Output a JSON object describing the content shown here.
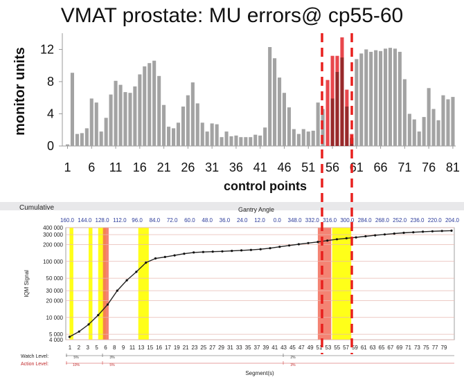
{
  "title": "VMAT prostate: MU errors@ cp55-60",
  "chart_data": [
    {
      "type": "bar",
      "ylabel": "monitor units",
      "xlabel": "control points",
      "ylim": [
        0,
        13.5
      ],
      "yticks": [
        0,
        4,
        8,
        12
      ],
      "xticks": [
        1,
        6,
        11,
        16,
        21,
        26,
        31,
        36,
        41,
        46,
        51,
        56,
        61,
        66,
        71,
        76,
        81
      ],
      "x": [
        1,
        2,
        3,
        4,
        5,
        6,
        7,
        8,
        9,
        10,
        11,
        12,
        13,
        14,
        15,
        16,
        17,
        18,
        19,
        20,
        21,
        22,
        23,
        24,
        25,
        26,
        27,
        28,
        29,
        30,
        31,
        32,
        33,
        34,
        35,
        36,
        37,
        38,
        39,
        40,
        41,
        42,
        43,
        44,
        45,
        46,
        47,
        48,
        49,
        50,
        51,
        52,
        53,
        54,
        55,
        56,
        57,
        58,
        59,
        60,
        61,
        62,
        63,
        64,
        65,
        66,
        67,
        68,
        69,
        70,
        71,
        72,
        73,
        74,
        75,
        76,
        77,
        78,
        79,
        80,
        81
      ],
      "series": [
        {
          "values": [
            0.2,
            9.1,
            1.5,
            1.6,
            2.2,
            5.9,
            5.4,
            1.8,
            3.5,
            6.4,
            8.1,
            7.6,
            6.7,
            6.6,
            7.4,
            8.9,
            9.9,
            10.3,
            10.6,
            8.7,
            5.1,
            2.4,
            2.2,
            2.9,
            4.9,
            6.3,
            7.9,
            5.3,
            2.9,
            1.8,
            2.8,
            2.7,
            1.1,
            1.8,
            1.2,
            1.3,
            1.1,
            1.1,
            1.1,
            1.4,
            1.3,
            2.3,
            12.3,
            10.9,
            8.5,
            6.6,
            4.8,
            2.1,
            1.5,
            2.1,
            1.8,
            1.9,
            5.4,
            4.6,
            8.2,
            11.2,
            11.2,
            13.5,
            7.0,
            1.5,
            10.8,
            11.5,
            12.0,
            11.7,
            11.9,
            11.8,
            12.1,
            12.2,
            12.1,
            11.7,
            8.3,
            4.0,
            3.3,
            1.8,
            3.6,
            7.2,
            4.6,
            3.2,
            6.3,
            5.8,
            6.1
          ],
          "highlight_color": "#e8474c",
          "highlight_indices": [
            54,
            55,
            56,
            57,
            58,
            59
          ],
          "overlay_dark": [
            0,
            0,
            0,
            0,
            0,
            0,
            0,
            0,
            0,
            0,
            0,
            0,
            0,
            0,
            0,
            0,
            0,
            0,
            0,
            0,
            0,
            0,
            0,
            0,
            0,
            0,
            0,
            0,
            0,
            0,
            0,
            0,
            0,
            0,
            0,
            0,
            0,
            0,
            0,
            0,
            0,
            0,
            0,
            0,
            0,
            0,
            0,
            0,
            0,
            0,
            0,
            0,
            0,
            0,
            0,
            5.9,
            9.2,
            11.0,
            4.9,
            1.0,
            0,
            0,
            0,
            0,
            0,
            0,
            0,
            0,
            0,
            0,
            0,
            0,
            0,
            0,
            0,
            0,
            0,
            0,
            0,
            0,
            0
          ]
        }
      ],
      "bar_color": "#a3a3a3",
      "dashed_line_color": "#e8201e"
    },
    {
      "type": "line",
      "title": "Cumulative",
      "top_axis_label": "Gantry Angle",
      "top_ticks": [
        "160.0",
        "144.0",
        "128.0",
        "112.0",
        "96.0",
        "84.0",
        "72.0",
        "60.0",
        "48.0",
        "36.0",
        "24.0",
        "12.0",
        "0.0",
        "348.0",
        "332.0",
        "316.0",
        "300.0",
        "284.0",
        "268.0",
        "252.0",
        "236.0",
        "220.0",
        "204.0"
      ],
      "ylabel": "IQM Signal",
      "xlabel": "Segment(s)",
      "yscale": "log",
      "ylim": [
        4000,
        400000
      ],
      "yticks": [
        {
          "value": 4000,
          "label": "4 000"
        },
        {
          "value": 5000,
          "label": "5 000"
        },
        {
          "value": 10000,
          "label": "10 000"
        },
        {
          "value": 20000,
          "label": "20 000"
        },
        {
          "value": 30000,
          "label": "30 000"
        },
        {
          "value": 50000,
          "label": "50 000"
        },
        {
          "value": 100000,
          "label": "100 000"
        },
        {
          "value": 200000,
          "label": "200 000"
        },
        {
          "value": 300000,
          "label": "300 000"
        },
        {
          "value": 400000,
          "label": "400 000"
        }
      ],
      "xticks_labels": [
        "1",
        "2",
        "3",
        "5",
        "6",
        "8",
        "9",
        "11",
        "13",
        "15",
        "16",
        "17",
        "19",
        "21",
        "23",
        "25",
        "27",
        "29",
        "31",
        "33",
        "35",
        "37",
        "39",
        "41",
        "43",
        "45",
        "47",
        "49",
        "51",
        "53",
        "55",
        "57",
        "59",
        "61",
        "63",
        "65",
        "67",
        "69",
        "71",
        "73",
        "75",
        "77",
        "79"
      ],
      "x": [
        1,
        3,
        5,
        7,
        9,
        11,
        13,
        15,
        17,
        19,
        21,
        23,
        25,
        27,
        29,
        31,
        33,
        35,
        37,
        39,
        41,
        43,
        45,
        47,
        49,
        51,
        53,
        55,
        57,
        59,
        61,
        63,
        65,
        67,
        69,
        71,
        73,
        75,
        77,
        79,
        81
      ],
      "series": [
        {
          "values": [
            4500,
            5600,
            7500,
            11000,
            17000,
            30000,
            46000,
            65000,
            95000,
            113000,
            120000,
            128000,
            137000,
            144000,
            147000,
            149000,
            151000,
            154000,
            157000,
            160000,
            165000,
            172000,
            182000,
            192000,
            202000,
            212000,
            222000,
            235000,
            248000,
            258000,
            268000,
            280000,
            292000,
            303000,
            313000,
            323000,
            331000,
            338000,
            344000,
            349000,
            353000
          ]
        }
      ],
      "highlight_bands_yellow_segments": [
        [
          1,
          1.8
        ],
        [
          5,
          5.8
        ],
        [
          7,
          8.6
        ],
        [
          15.4,
          17.6
        ],
        [
          56,
          60
        ]
      ],
      "highlight_bands_red_segments": [
        [
          8,
          9.2
        ],
        [
          53,
          55.8
        ]
      ],
      "watch_level": {
        "label": "Watch Level:",
        "values": [
          "5%",
          "3%",
          "2%"
        ]
      },
      "action_level": {
        "label": "Action Level:",
        "values": [
          "10%",
          "5%",
          "3%"
        ]
      }
    }
  ]
}
